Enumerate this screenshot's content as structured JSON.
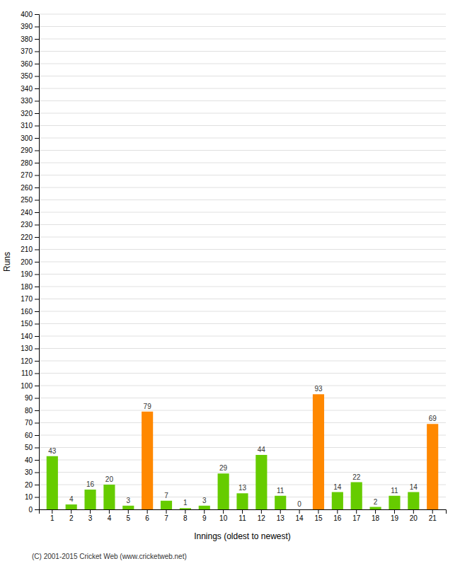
{
  "chart_data": {
    "type": "bar",
    "xlabel": "Innings (oldest to newest)",
    "ylabel": "Runs",
    "categories": [
      1,
      2,
      3,
      4,
      5,
      6,
      7,
      8,
      9,
      10,
      11,
      12,
      13,
      14,
      15,
      16,
      17,
      18,
      19,
      20,
      21
    ],
    "values": [
      43,
      4,
      16,
      20,
      3,
      79,
      7,
      1,
      3,
      29,
      13,
      44,
      11,
      0,
      93,
      14,
      22,
      2,
      11,
      14,
      69
    ],
    "colors": [
      "#66cc00",
      "#66cc00",
      "#66cc00",
      "#66cc00",
      "#66cc00",
      "#ff8800",
      "#66cc00",
      "#66cc00",
      "#66cc00",
      "#66cc00",
      "#66cc00",
      "#66cc00",
      "#66cc00",
      "#66cc00",
      "#ff8800",
      "#66cc00",
      "#66cc00",
      "#66cc00",
      "#66cc00",
      "#66cc00",
      "#ff8800"
    ],
    "ylim": [
      0,
      400
    ],
    "yticks": [
      0,
      10,
      20,
      30,
      40,
      50,
      60,
      70,
      80,
      90,
      100,
      110,
      120,
      130,
      140,
      150,
      160,
      170,
      180,
      190,
      200,
      210,
      220,
      230,
      240,
      250,
      260,
      270,
      280,
      290,
      300,
      310,
      320,
      330,
      340,
      350,
      360,
      370,
      380,
      390,
      400
    ],
    "grid": true,
    "data_labels": true,
    "annotations": [
      "(C) 2001-2015 Cricket Web (www.cricketweb.net)"
    ]
  }
}
